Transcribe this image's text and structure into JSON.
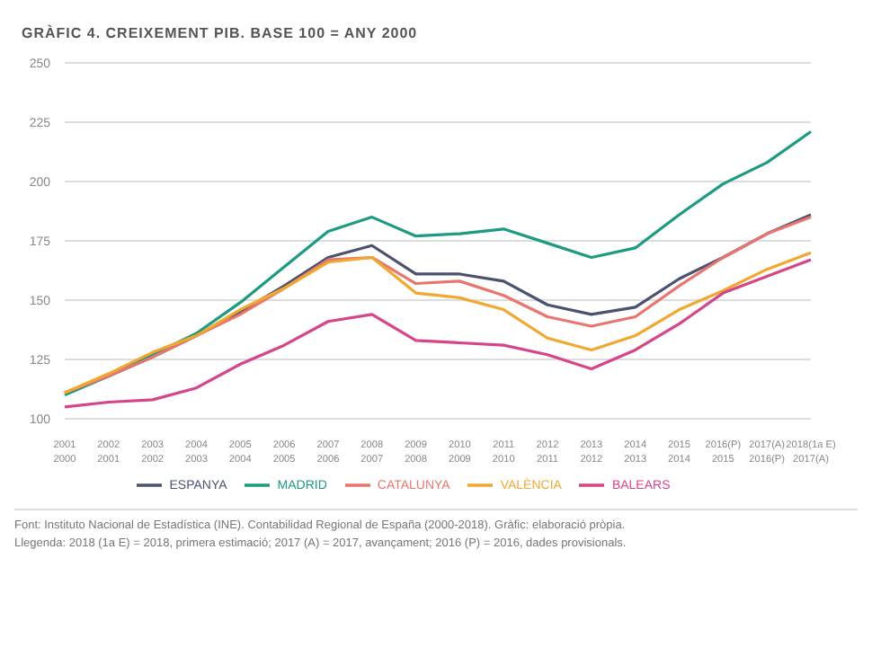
{
  "chart_data": {
    "type": "line",
    "title": "GRÀFIC 4. CREIXEMENT PIB. BASE 100 = ANY 2000",
    "categories": [
      "2001\n2000",
      "2002\n2001",
      "2003\n2002",
      "2004\n2003",
      "2005\n2004",
      "2006\n2005",
      "2007\n2006",
      "2008\n2007",
      "2009\n2008",
      "2010\n2009",
      "2011\n2010",
      "2012\n2011",
      "2013\n2012",
      "2014\n2013",
      "2015\n2014",
      "2016(P)\n2015",
      "2017(A)\n2016(P)",
      "2018(1a E)\n2017(A)"
    ],
    "series": [
      {
        "name": "ESPANYA",
        "color": "#4a5270",
        "values": [
          111,
          118,
          126,
          135,
          145,
          156,
          168,
          173,
          161,
          161,
          158,
          148,
          144,
          147,
          159,
          168,
          178,
          186
        ]
      },
      {
        "name": "MADRID",
        "color": "#1e9a82",
        "values": [
          110,
          118,
          127,
          136,
          149,
          164,
          179,
          185,
          177,
          178,
          180,
          174,
          168,
          172,
          186,
          199,
          208,
          221
        ]
      },
      {
        "name": "CATALUNYA",
        "color": "#e8766e",
        "values": [
          111,
          118,
          126,
          135,
          144,
          155,
          167,
          168,
          157,
          158,
          152,
          143,
          139,
          143,
          156,
          168,
          178,
          185
        ]
      },
      {
        "name": "VALÈNCIA",
        "color": "#f0a830",
        "values": [
          111,
          119,
          128,
          135,
          146,
          155,
          166,
          168,
          153,
          151,
          146,
          134,
          129,
          135,
          146,
          154,
          163,
          170
        ]
      },
      {
        "name": "BALEARS",
        "color": "#d6458a",
        "values": [
          105,
          107,
          108,
          113,
          123,
          131,
          141,
          144,
          133,
          132,
          131,
          127,
          121,
          129,
          140,
          153,
          160,
          167
        ]
      }
    ],
    "ylim": [
      100,
      250
    ],
    "yticks": [
      100,
      125,
      150,
      175,
      200,
      225,
      250
    ],
    "grid": "y",
    "legend": "bottom",
    "marker": "none",
    "annotations": [
      "Font: Instituto Nacional de Estadística (INE). Contabilidad Regional de España (2000-2018). Gràfic: elaboració pròpia.",
      "Llegenda: 2018 (1a E) = 2018, primera estimació; 2017 (A) = 2017, avançament; 2016 (P) = 2016, dades provisionals."
    ]
  }
}
